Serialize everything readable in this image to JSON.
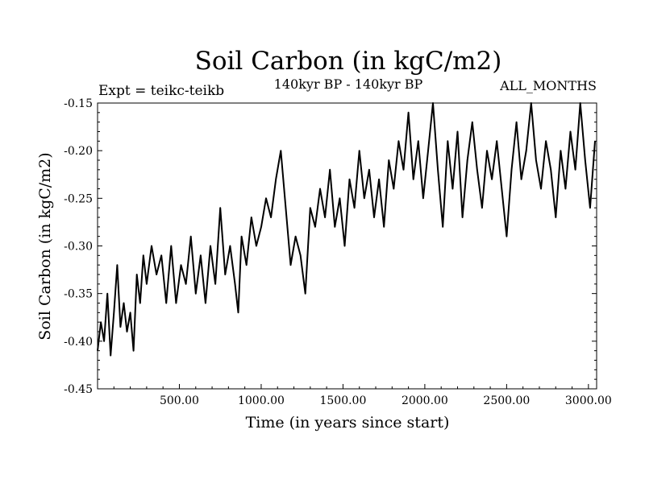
{
  "chart_data": {
    "type": "line",
    "title": "Soil Carbon (in kgC/m2)",
    "subtitle": "140kyr BP - 140kyr BP",
    "experiment_label": "Expt = teikc-teikb",
    "period_label": "ALL_MONTHS",
    "xlabel": "Time (in years since start)",
    "ylabel": "Soil Carbon (in kgC/m2)",
    "xlim": [
      0,
      3050
    ],
    "ylim": [
      -0.45,
      -0.15
    ],
    "xticks": [
      {
        "value": 500,
        "label": "500.00"
      },
      {
        "value": 1000,
        "label": "1000.00"
      },
      {
        "value": 1500,
        "label": "1500.00"
      },
      {
        "value": 2000,
        "label": "2000.00"
      },
      {
        "value": 2500,
        "label": "2500.00"
      },
      {
        "value": 3000,
        "label": "3000.00"
      }
    ],
    "yticks": [
      {
        "value": -0.15,
        "label": "-0.15"
      },
      {
        "value": -0.2,
        "label": "-0.20"
      },
      {
        "value": -0.25,
        "label": "-0.25"
      },
      {
        "value": -0.3,
        "label": "-0.30"
      },
      {
        "value": -0.35,
        "label": "-0.35"
      },
      {
        "value": -0.4,
        "label": "-0.40"
      },
      {
        "value": -0.45,
        "label": "-0.45"
      }
    ],
    "series": [
      {
        "name": "Soil Carbon",
        "x": [
          0,
          20,
          40,
          60,
          80,
          100,
          120,
          140,
          160,
          180,
          200,
          220,
          240,
          260,
          280,
          300,
          330,
          360,
          390,
          420,
          450,
          480,
          510,
          540,
          570,
          600,
          630,
          660,
          690,
          720,
          750,
          780,
          810,
          840,
          860,
          880,
          910,
          940,
          970,
          1000,
          1030,
          1060,
          1090,
          1120,
          1150,
          1180,
          1210,
          1240,
          1270,
          1300,
          1330,
          1360,
          1390,
          1420,
          1450,
          1480,
          1510,
          1540,
          1570,
          1600,
          1630,
          1660,
          1690,
          1720,
          1750,
          1780,
          1810,
          1840,
          1870,
          1900,
          1930,
          1960,
          1990,
          2020,
          2050,
          2080,
          2110,
          2140,
          2170,
          2200,
          2230,
          2260,
          2290,
          2320,
          2350,
          2380,
          2410,
          2440,
          2470,
          2500,
          2530,
          2560,
          2590,
          2620,
          2650,
          2680,
          2710,
          2740,
          2770,
          2800,
          2830,
          2860,
          2890,
          2920,
          2950,
          2980,
          3010,
          3040
        ],
        "y": [
          -0.41,
          -0.38,
          -0.4,
          -0.35,
          -0.415,
          -0.37,
          -0.32,
          -0.385,
          -0.36,
          -0.39,
          -0.37,
          -0.41,
          -0.33,
          -0.36,
          -0.31,
          -0.34,
          -0.3,
          -0.33,
          -0.31,
          -0.36,
          -0.3,
          -0.36,
          -0.32,
          -0.34,
          -0.29,
          -0.35,
          -0.31,
          -0.36,
          -0.3,
          -0.34,
          -0.26,
          -0.33,
          -0.3,
          -0.34,
          -0.37,
          -0.29,
          -0.32,
          -0.27,
          -0.3,
          -0.28,
          -0.25,
          -0.27,
          -0.23,
          -0.2,
          -0.26,
          -0.32,
          -0.29,
          -0.31,
          -0.35,
          -0.26,
          -0.28,
          -0.24,
          -0.27,
          -0.22,
          -0.28,
          -0.25,
          -0.3,
          -0.23,
          -0.26,
          -0.2,
          -0.25,
          -0.22,
          -0.27,
          -0.23,
          -0.28,
          -0.21,
          -0.24,
          -0.19,
          -0.22,
          -0.16,
          -0.23,
          -0.19,
          -0.25,
          -0.2,
          -0.15,
          -0.22,
          -0.28,
          -0.19,
          -0.24,
          -0.18,
          -0.27,
          -0.21,
          -0.17,
          -0.22,
          -0.26,
          -0.2,
          -0.23,
          -0.19,
          -0.24,
          -0.29,
          -0.22,
          -0.17,
          -0.23,
          -0.2,
          -0.15,
          -0.21,
          -0.24,
          -0.19,
          -0.22,
          -0.27,
          -0.2,
          -0.24,
          -0.18,
          -0.22,
          -0.15,
          -0.21,
          -0.26,
          -0.19
        ]
      }
    ]
  }
}
